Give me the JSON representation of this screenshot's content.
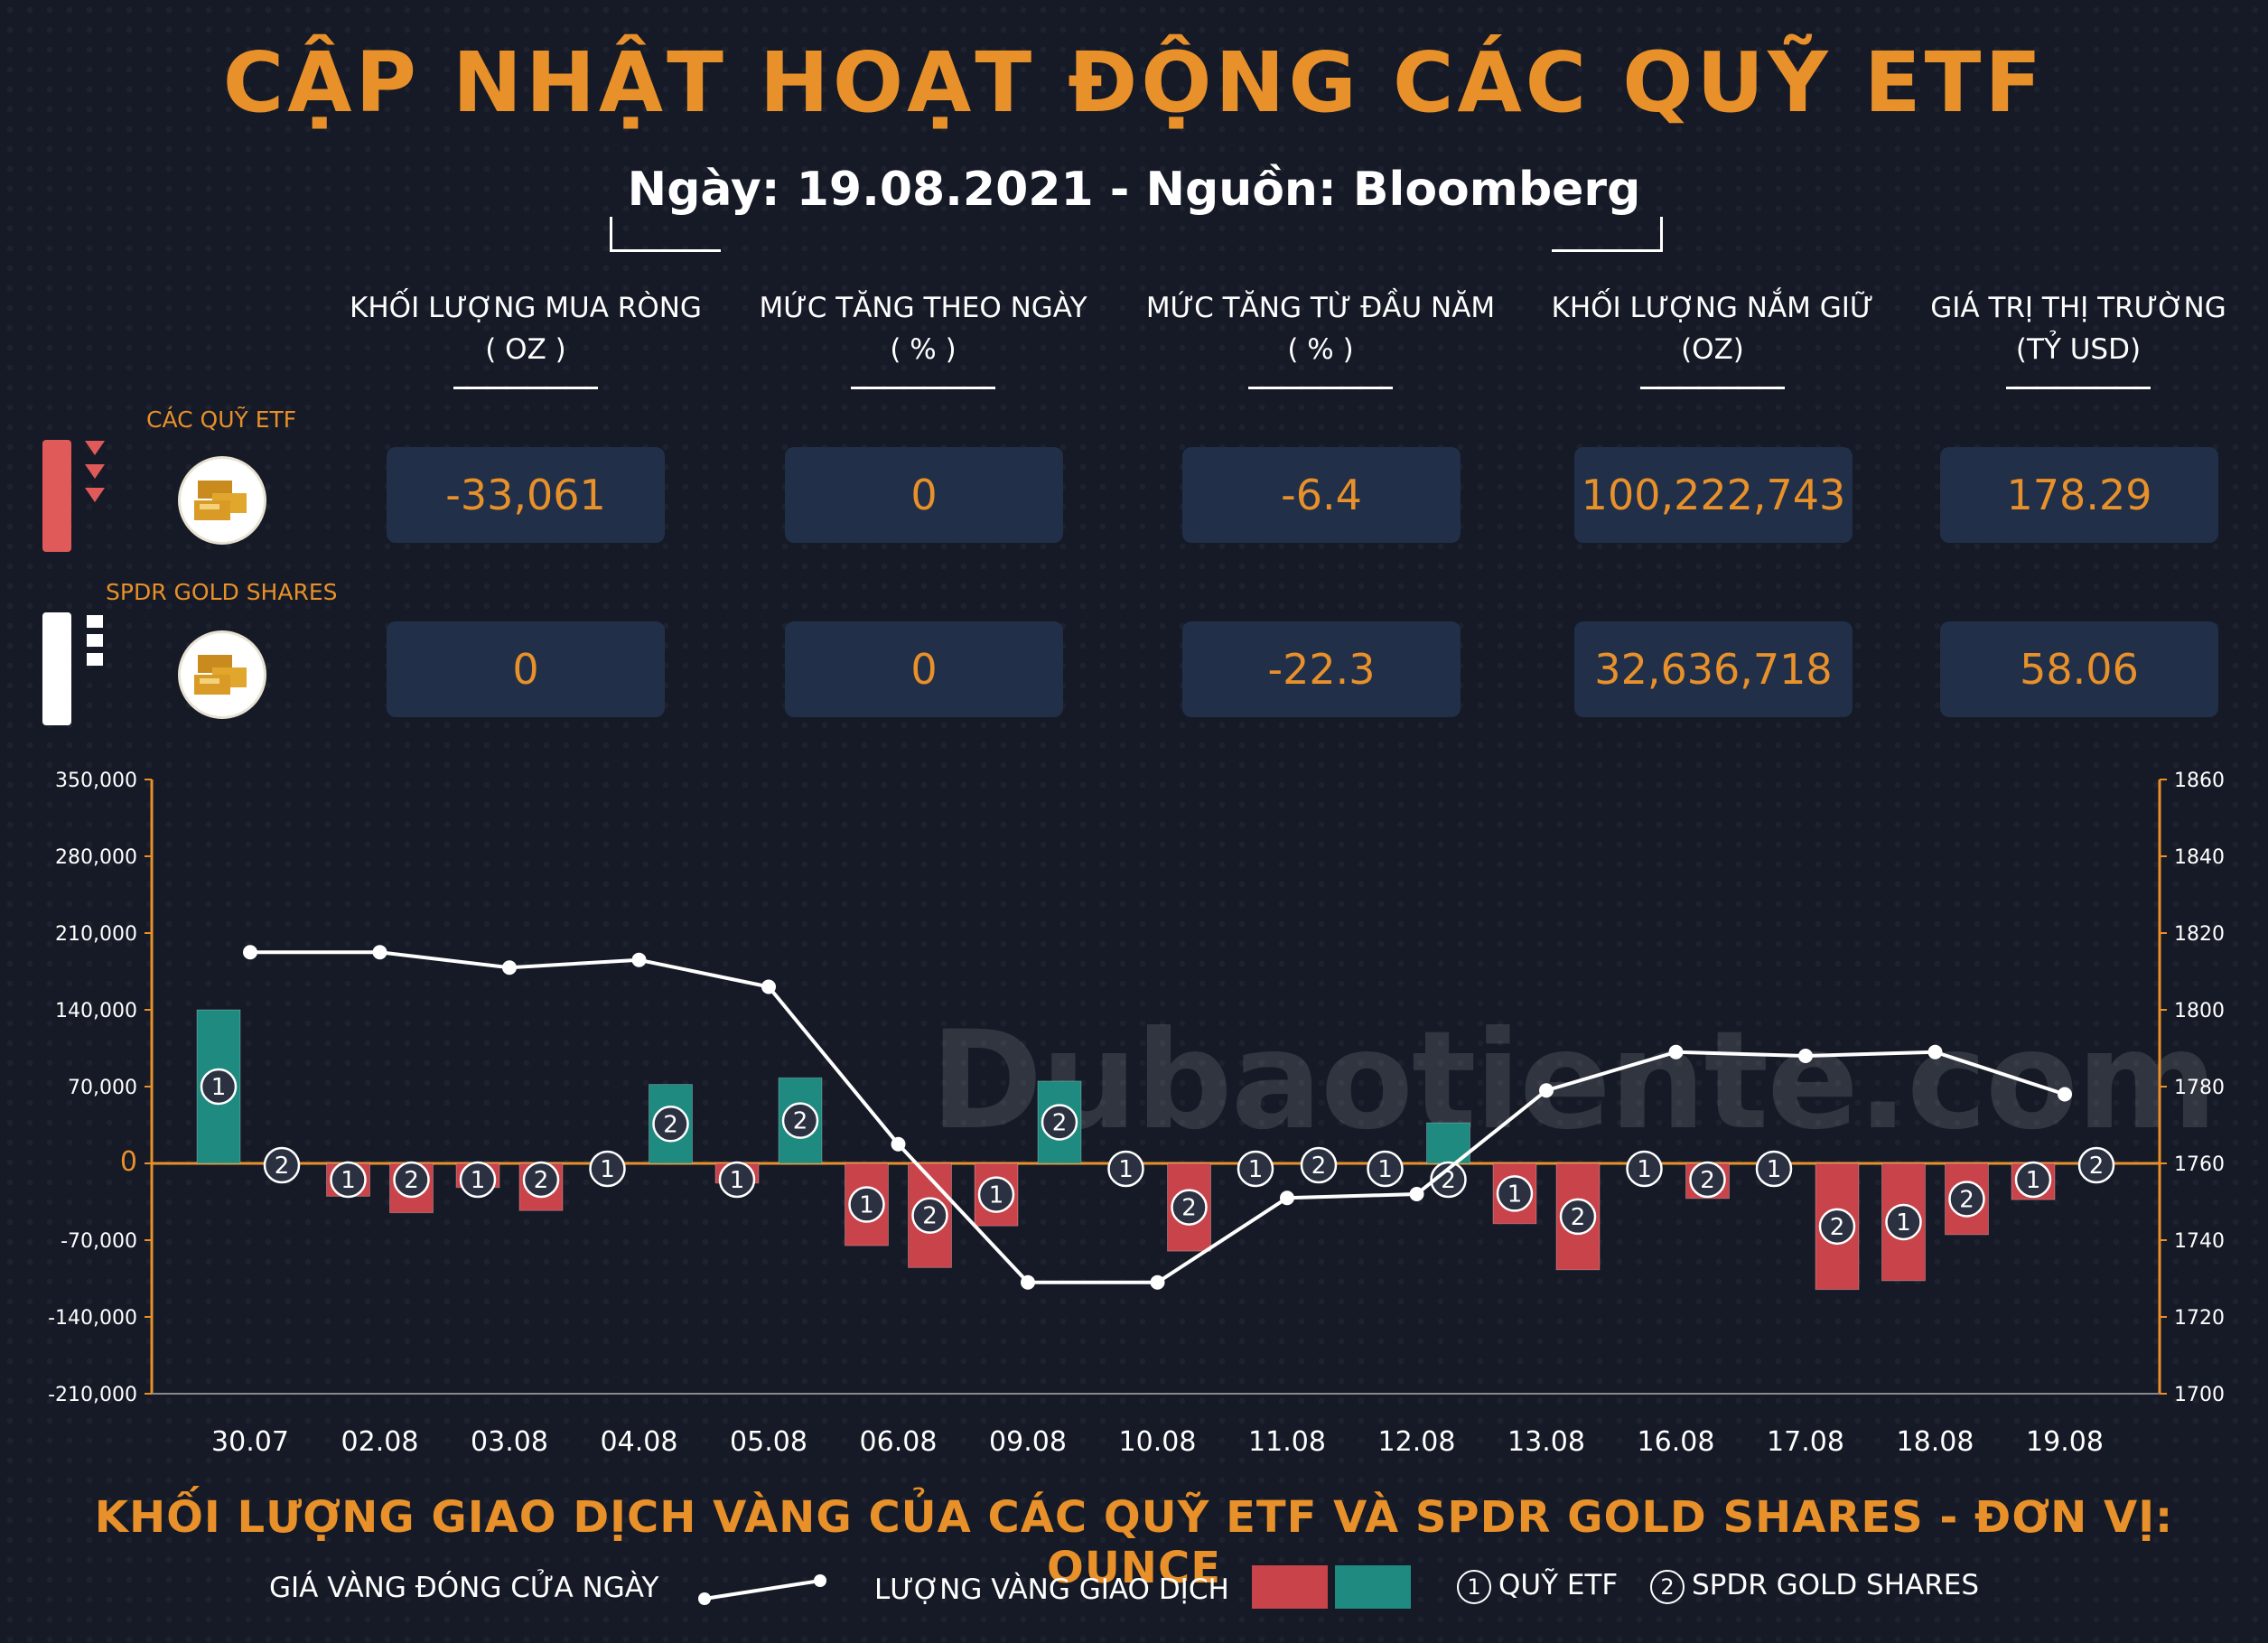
{
  "title": "CẬP NHẬT HOẠT ĐỘNG CÁC QUỸ ETF",
  "subtitle": "Ngày: 19.08.2021 - Nguồn: Bloomberg",
  "columns": [
    {
      "label": "KHỐI LƯỢNG MUA RÒNG",
      "unit": "( OZ )"
    },
    {
      "label": "MỨC TĂNG THEO NGÀY",
      "unit": "( % )"
    },
    {
      "label": "MỨC TĂNG TỪ ĐẦU NĂM",
      "unit": "( % )"
    },
    {
      "label": "KHỐI LƯỢNG NẮM GIỮ",
      "unit": "(OZ)"
    },
    {
      "label": "GIÁ TRỊ THỊ TRƯỜNG",
      "unit": "(TỶ USD)"
    }
  ],
  "rows": [
    {
      "label": "CÁC QUỸ ETF",
      "values": [
        "-33,061",
        "0",
        "-6.4",
        "100,222,743",
        "178.29"
      ],
      "status": "down"
    },
    {
      "label": "SPDR GOLD SHARES",
      "values": [
        "0",
        "0",
        "-22.3",
        "32,636,718",
        "58.06"
      ],
      "status": "neutral"
    }
  ],
  "watermark": "Dubaotiente.com",
  "colors": {
    "accent": "#e8902a",
    "negative": "#c9444a",
    "positive": "#1f8a80",
    "line": "#ffffff",
    "box": "#213048"
  },
  "chart_data": {
    "type": "bar",
    "title": "KHỐI LƯỢNG GIAO DỊCH VÀNG CỦA CÁC QUỸ ETF VÀ SPDR GOLD SHARES - ĐƠN VỊ: OUNCE",
    "categories": [
      "30.07",
      "02.08",
      "03.08",
      "04.08",
      "05.08",
      "06.08",
      "09.08",
      "10.08",
      "11.08",
      "12.08",
      "13.08",
      "16.08",
      "17.08",
      "18.08",
      "19.08"
    ],
    "series": [
      {
        "name": "QUỸ ETF",
        "marker": "1",
        "values": [
          140000,
          -30000,
          -22000,
          0,
          -18000,
          -75000,
          -57000,
          0,
          0,
          0,
          -55000,
          0,
          0,
          -107000,
          -33061
        ]
      },
      {
        "name": "SPDR GOLD SHARES",
        "marker": "2",
        "values": [
          0,
          -45000,
          -43000,
          72000,
          78000,
          -95000,
          75000,
          -80000,
          0,
          37000,
          -97000,
          -32000,
          -115000,
          -65000,
          0
        ]
      },
      {
        "name": "GIÁ VÀNG ĐÓNG CỬA NGÀY",
        "type": "line",
        "axis": "right",
        "values": [
          1815,
          1815,
          1811,
          1813,
          1806,
          1765,
          1729,
          1729,
          1751,
          1752,
          1779,
          1789,
          1788,
          1789,
          1778
        ]
      }
    ],
    "y_left": {
      "ylim": [
        -210000,
        350000
      ],
      "ticks": [
        "350,000",
        "280,000",
        "210,000",
        "140,000",
        "70,000",
        "0",
        "-70,000",
        "-140,000",
        "-210,000"
      ],
      "tick_values": [
        350000,
        280000,
        210000,
        140000,
        70000,
        0,
        -70000,
        -140000,
        -210000
      ]
    },
    "y_right": {
      "ylim": [
        1700,
        1860
      ],
      "ticks": [
        "1860",
        "1840",
        "1820",
        "1800",
        "1780",
        "1760",
        "1740",
        "1720",
        "1700"
      ],
      "tick_values": [
        1860,
        1840,
        1820,
        1800,
        1780,
        1760,
        1740,
        1720,
        1700
      ]
    },
    "legend": {
      "line_label": "GIÁ VÀNG ĐÓNG CỬA NGÀY",
      "bar_label": "LƯỢNG VÀNG GIAO DỊCH",
      "m1_label": "QUỸ ETF",
      "m2_label": "SPDR GOLD SHARES",
      "m1": "1",
      "m2": "2"
    },
    "legend_position": "bottom",
    "grid": false
  }
}
